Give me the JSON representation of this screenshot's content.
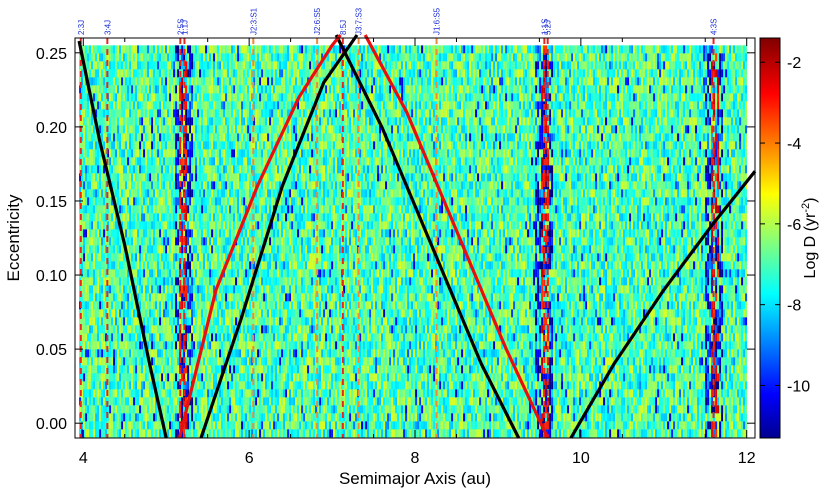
{
  "chart_data": {
    "type": "heatmap",
    "xlabel": "Semimajor Axis (au)",
    "ylabel": "Eccentricity",
    "xlim": [
      3.9,
      12.1
    ],
    "ylim": [
      -0.01,
      0.26
    ],
    "x_ticks": [
      4,
      6,
      8,
      10,
      12
    ],
    "x_tick_labels": [
      "4",
      "6",
      "8",
      "10",
      "12"
    ],
    "y_ticks": [
      0.0,
      0.05,
      0.1,
      0.15,
      0.2,
      0.25
    ],
    "y_tick_labels": [
      "0.00",
      "0.05",
      "0.10",
      "0.15",
      "0.20",
      "0.25"
    ],
    "colorbar": {
      "label_prefix": "Log D (yr",
      "label_exponent": "-2",
      "label_suffix": ")",
      "range": [
        -11.3,
        -1.4
      ],
      "ticks": [
        -2,
        -4,
        -6,
        -8,
        -10
      ],
      "tick_labels": [
        "-2",
        "-4",
        "-6",
        "-8",
        "-10"
      ],
      "colormap": "jet"
    },
    "background_value": -6.8,
    "heatmap_extent": {
      "a": [
        3.95,
        12.0
      ],
      "e": [
        -0.01,
        0.255
      ]
    },
    "high_diffusion_bands_au": [
      5.2,
      9.55,
      11.6
    ],
    "resonances": [
      {
        "label": "2:3J",
        "a": 3.97,
        "color": "#e8261f"
      },
      {
        "label": "3:4J",
        "a": 4.29,
        "color": "#e8261f"
      },
      {
        "label": "2:5S",
        "a": 5.17,
        "color": "#e8261f"
      },
      {
        "label": "1:1J",
        "a": 5.22,
        "color": "#e8261f"
      },
      {
        "label": "J2:3:S1",
        "a": 6.05,
        "color": "#ef8a3a"
      },
      {
        "label": "J2:6:S5",
        "a": 6.82,
        "color": "#ef8a3a"
      },
      {
        "label": "8:5J",
        "a": 7.13,
        "color": "#e8261f"
      },
      {
        "label": "J3:7:S3",
        "a": 7.32,
        "color": "#ef8a3a"
      },
      {
        "label": "J1:6:S5",
        "a": 8.26,
        "color": "#ef8a3a"
      },
      {
        "label": "1:1S",
        "a": 9.56,
        "color": "#e8261f"
      },
      {
        "label": "5:2J",
        "a": 9.6,
        "color": "#e8261f"
      },
      {
        "label": "4:3S",
        "a": 11.6,
        "color": "#e8261f"
      }
    ],
    "crossing_curves": [
      {
        "kind": "black",
        "x": [
          3.95,
          4.2,
          4.5,
          4.8,
          5.0
        ],
        "y": [
          0.258,
          0.19,
          0.12,
          0.04,
          -0.01
        ]
      },
      {
        "kind": "black",
        "x": [
          5.42,
          5.9,
          6.4,
          6.9,
          7.3
        ],
        "y": [
          -0.01,
          0.07,
          0.16,
          0.23,
          0.262
        ]
      },
      {
        "kind": "black",
        "x": [
          7.05,
          7.6,
          8.2,
          8.8,
          9.25
        ],
        "y": [
          0.262,
          0.2,
          0.12,
          0.04,
          -0.01
        ]
      },
      {
        "kind": "black",
        "x": [
          9.88,
          10.4,
          11.0,
          11.6,
          12.1
        ],
        "y": [
          -0.01,
          0.04,
          0.09,
          0.135,
          0.17
        ]
      },
      {
        "kind": "red",
        "x": [
          5.16,
          5.6,
          6.1,
          6.6,
          7.0,
          7.1
        ],
        "y": [
          -0.01,
          0.09,
          0.16,
          0.22,
          0.255,
          0.262
        ]
      },
      {
        "kind": "red",
        "x": [
          7.4,
          7.9,
          8.5,
          9.1,
          9.6
        ],
        "y": [
          0.262,
          0.21,
          0.13,
          0.05,
          -0.01
        ]
      }
    ]
  }
}
